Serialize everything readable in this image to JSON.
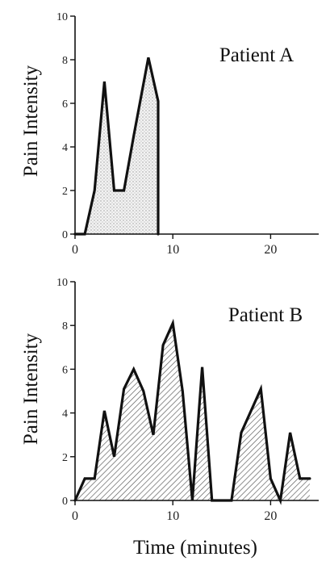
{
  "chart_data": [
    {
      "type": "area",
      "title": "Patient A",
      "xlabel": "",
      "ylabel": "Pain Intensity",
      "xlim": [
        0,
        25
      ],
      "ylim": [
        0,
        10
      ],
      "x_ticks": [
        0,
        10,
        20
      ],
      "y_ticks": [
        0,
        2,
        4,
        6,
        8,
        10
      ],
      "x_tick_labels": [
        "0",
        "10",
        "20"
      ],
      "y_tick_labels": [
        "0",
        "2",
        "4",
        "6",
        "8",
        "10"
      ],
      "fill": "dotted",
      "series": [
        {
          "x": [
            0,
            0.6,
            1,
            2,
            3,
            4,
            5,
            6,
            7.5,
            8.5,
            8.5
          ],
          "y": [
            0,
            0,
            0,
            2,
            7,
            2,
            2,
            4.5,
            8.1,
            6.1,
            0
          ]
        }
      ]
    },
    {
      "type": "area",
      "title": "Patient B",
      "xlabel": "Time (minutes)",
      "ylabel": "Pain Intensity",
      "xlim": [
        0,
        25
      ],
      "ylim": [
        0,
        10
      ],
      "x_ticks": [
        0,
        10,
        20
      ],
      "y_ticks": [
        0,
        2,
        4,
        6,
        8,
        10
      ],
      "x_tick_labels": [
        "0",
        "10",
        "20"
      ],
      "y_tick_labels": [
        "0",
        "2",
        "4",
        "6",
        "8",
        "10"
      ],
      "fill": "hatched",
      "series": [
        {
          "x": [
            0,
            1,
            2,
            3,
            4,
            5,
            6,
            7,
            8,
            9,
            10,
            11,
            12,
            13,
            14,
            16,
            17,
            19,
            20,
            21,
            22,
            23,
            24
          ],
          "y": [
            0,
            1,
            1,
            4.1,
            2,
            5.1,
            6,
            5,
            3,
            7.1,
            8.1,
            5,
            0,
            6.1,
            0,
            0,
            3.1,
            5.1,
            1,
            0,
            3.1,
            1,
            1
          ]
        }
      ]
    }
  ]
}
